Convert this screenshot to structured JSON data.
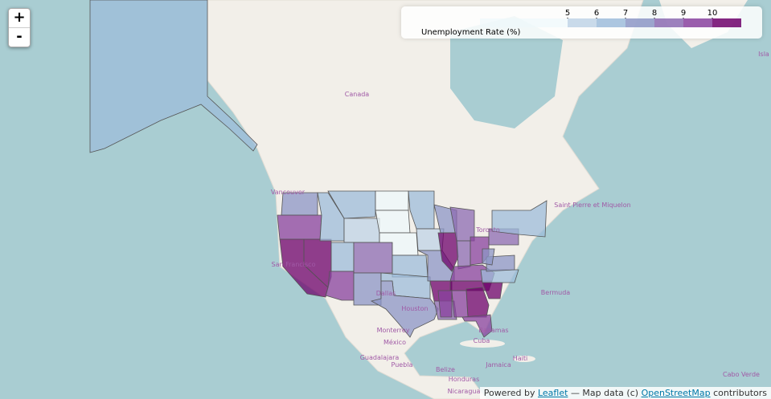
{
  "zoom": {
    "in": "+",
    "out": "-"
  },
  "legend": {
    "title": "Unemployment Rate (%)",
    "ticks": [
      5,
      6,
      7,
      8,
      9,
      10
    ],
    "colors": [
      "#edf8fb",
      "#bfd3e6",
      "#9ebcda",
      "#8c96c6",
      "#8c6bb1",
      "#88419d",
      "#6e016b"
    ]
  },
  "choropleth": {
    "values": [
      6.8,
      7.8,
      9.1,
      11.5,
      12.1,
      6.0,
      6.2,
      5.6,
      6.0,
      8.1,
      9.5,
      7.2,
      3.3,
      4.4,
      4.5,
      6.1,
      6.5,
      7.5,
      6.4,
      5.9,
      7.3,
      10.0,
      8.2,
      7.0,
      10.4,
      8.0,
      8.6,
      9.3,
      9.0,
      10.2,
      9.5,
      9.6,
      10.5,
      9.9,
      10.1,
      6.5,
      7.4,
      7.9,
      8.3,
      6.9
    ]
  },
  "places": [
    "Canada",
    "Saint Pierre et Miquelon",
    "Bermuda",
    "Monterrey",
    "México",
    "Guadalajara",
    "Puebla",
    "Belize",
    "Honduras",
    "Nicaragua",
    "Cuba",
    "Bahamas",
    "Haiti",
    "Jamaica",
    "Cabo Verde",
    "San Francisco",
    "Vancouver",
    "Dallas",
    "Houston",
    "Toronto",
    "Isla"
  ],
  "attribution": {
    "prefix": "Powered by",
    "leaflet": "Leaflet",
    "middle": "— Map data (c)",
    "osm": "OpenStreetMap",
    "suffix": "contributors"
  }
}
